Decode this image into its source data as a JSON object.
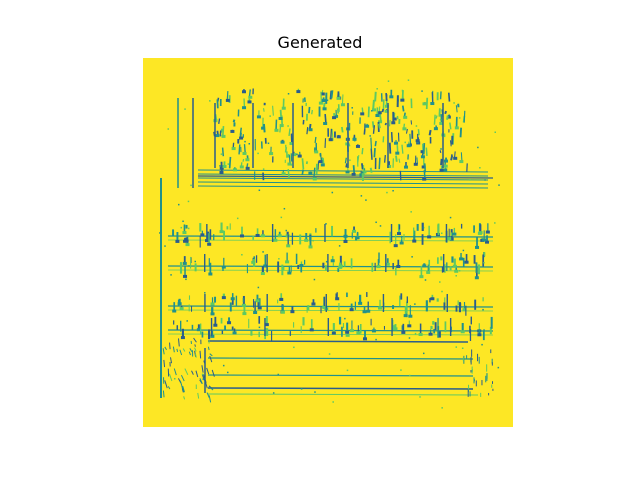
{
  "figure": {
    "title": "Generated"
  },
  "image": {
    "description_colors": {
      "background": "#fde725",
      "ink_dark": "#2a5d8c",
      "ink_mid": "#21918c",
      "ink_light": "#5ec962"
    }
  }
}
